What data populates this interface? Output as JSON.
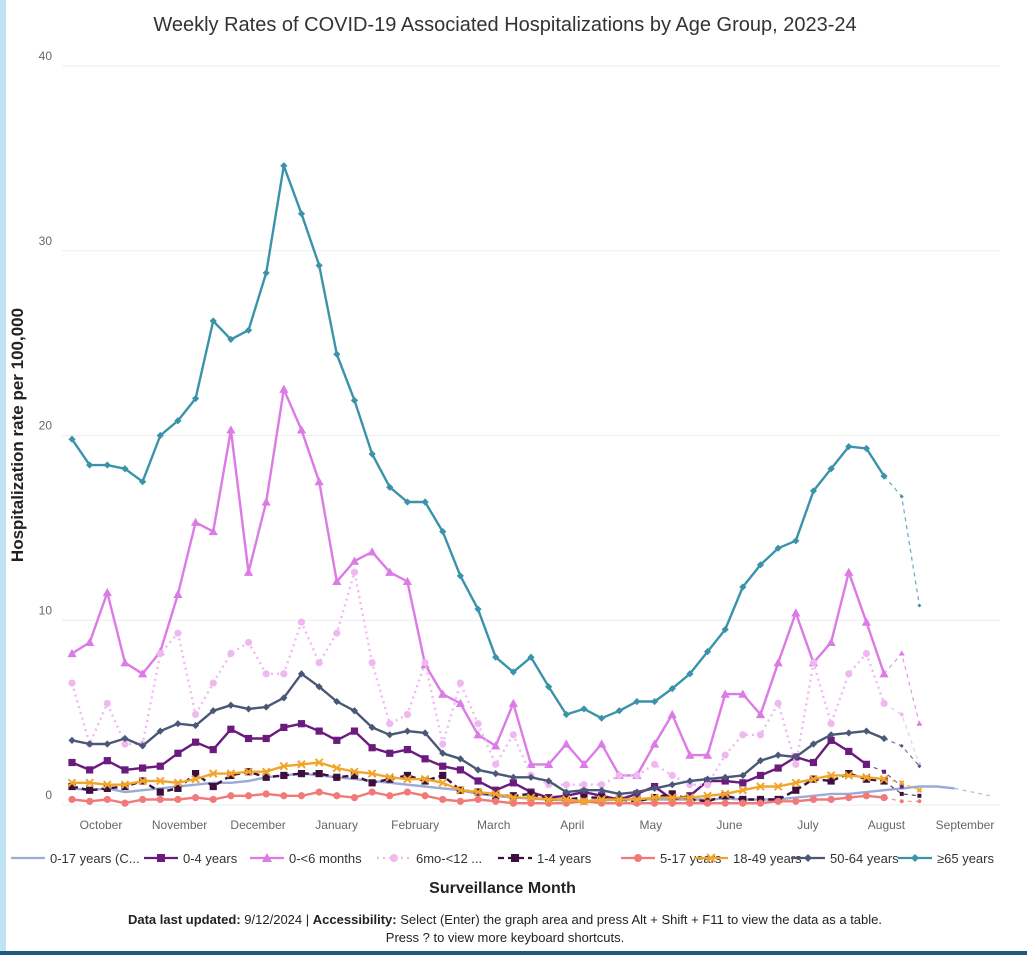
{
  "title": "Weekly Rates of COVID-19 Associated Hospitalizations by Age Group, 2023-24",
  "footer": {
    "updated_label": "Data last updated:",
    "updated_value": "9/12/2024",
    "separator": "|",
    "accessibility_label": "Accessibility:",
    "accessibility_text": "Select (Enter) the graph area and press Alt + Shift + F11 to view the data as a table.",
    "line2": "Press ? to view more keyboard shortcuts."
  },
  "chart_data": {
    "type": "line",
    "title": "Weekly Rates of COVID-19 Associated Hospitalizations by Age Group, 2023-24",
    "xlabel": "Surveillance Month",
    "ylabel": "Hospitalization rate per 100,000",
    "ylim": [
      0,
      40
    ],
    "yticks": [
      0,
      10,
      20,
      30,
      40
    ],
    "months": [
      "October",
      "November",
      "December",
      "January",
      "February",
      "March",
      "April",
      "May",
      "June",
      "July",
      "August",
      "September"
    ],
    "grid": true,
    "legend_position": "bottom",
    "series": [
      {
        "name": "0-17 years (C...",
        "color": "#9aabd6",
        "dash": "solid",
        "marker": "none",
        "values": [
          0.9,
          0.8,
          0.9,
          0.7,
          0.8,
          0.9,
          1.0,
          1.1,
          1.2,
          1.2,
          1.3,
          1.5,
          1.6,
          1.7,
          1.6,
          1.5,
          1.4,
          1.3,
          1.2,
          1.1,
          1.0,
          0.9,
          0.8,
          0.6,
          0.5,
          0.4,
          0.35,
          0.3,
          0.25,
          0.2,
          0.25,
          0.3,
          0.35,
          0.3,
          0.3,
          0.3,
          0.3,
          0.35,
          0.3,
          0.3,
          0.3,
          0.4,
          0.5,
          0.6,
          0.6,
          0.7,
          0.8,
          0.9,
          1.0,
          1.0,
          0.9,
          0.7,
          0.5
        ]
      },
      {
        "name": "0-4 years",
        "color": "#6b1a7d",
        "dash": "solid",
        "marker": "square",
        "values": [
          2.3,
          1.9,
          2.4,
          1.9,
          2.0,
          2.1,
          2.8,
          3.4,
          3.0,
          4.1,
          3.6,
          3.6,
          4.2,
          4.4,
          4.0,
          3.5,
          4.0,
          3.1,
          2.8,
          3.0,
          2.5,
          2.1,
          1.9,
          1.3,
          0.8,
          1.2,
          0.7,
          0.4,
          0.5,
          0.7,
          0.5,
          0.3,
          0.6,
          1.0,
          0.3,
          0.5,
          1.3,
          1.3,
          1.2,
          1.6,
          2.0,
          2.6,
          2.3,
          3.5,
          2.9,
          2.2,
          1.8,
          1.0
        ]
      },
      {
        "name": "0-<6 months",
        "color": "#dc7ae6",
        "dash": "solid",
        "marker": "triangle",
        "values": [
          8.2,
          8.8,
          11.5,
          7.7,
          7.1,
          8.3,
          11.4,
          15.3,
          14.8,
          20.3,
          12.6,
          16.4,
          22.5,
          20.3,
          17.5,
          12.1,
          13.2,
          13.7,
          12.6,
          12.1,
          7.6,
          6.0,
          5.5,
          3.8,
          3.2,
          5.5,
          2.2,
          2.2,
          3.3,
          2.2,
          3.3,
          1.6,
          1.6,
          3.3,
          4.9,
          2.7,
          2.7,
          6.0,
          6.0,
          4.9,
          7.7,
          10.4,
          7.7,
          8.8,
          12.6,
          9.9,
          7.1,
          8.2,
          4.4
        ]
      },
      {
        "name": "6mo-<12 ...",
        "color": "#f0b8f0",
        "dash": "dot",
        "marker": "circle",
        "values": [
          6.6,
          3.3,
          5.5,
          3.3,
          3.3,
          8.2,
          9.3,
          4.9,
          6.6,
          8.2,
          8.8,
          7.1,
          7.1,
          9.9,
          7.7,
          9.3,
          12.6,
          7.7,
          4.4,
          4.9,
          7.7,
          3.3,
          6.6,
          4.4,
          2.2,
          3.8,
          1.6,
          1.1,
          1.1,
          1.1,
          1.1,
          1.6,
          1.6,
          2.2,
          1.6,
          1.1,
          1.1,
          2.7,
          3.8,
          3.8,
          5.5,
          2.2,
          7.7,
          4.4,
          7.1,
          8.2,
          5.5,
          4.9,
          2.2
        ]
      },
      {
        "name": "1-4 years",
        "color": "#3d0f3f",
        "dash": "dash",
        "marker": "square",
        "values": [
          1.0,
          0.8,
          0.9,
          1.0,
          1.3,
          0.7,
          0.9,
          1.7,
          1.0,
          1.6,
          1.8,
          1.5,
          1.6,
          1.7,
          1.7,
          1.5,
          1.6,
          1.2,
          1.4,
          1.6,
          1.3,
          1.6,
          0.8,
          0.7,
          0.5,
          0.5,
          0.6,
          0.3,
          0.3,
          0.4,
          0.4,
          0.3,
          0.2,
          0.4,
          0.6,
          0.3,
          0.2,
          0.5,
          0.3,
          0.3,
          0.3,
          0.8,
          1.4,
          1.3,
          1.7,
          1.4,
          1.3,
          0.6,
          0.5
        ]
      },
      {
        "name": "5-17 years",
        "color": "#f07a7a",
        "dash": "solid",
        "marker": "circle",
        "values": [
          0.3,
          0.2,
          0.3,
          0.1,
          0.3,
          0.3,
          0.3,
          0.4,
          0.3,
          0.5,
          0.5,
          0.6,
          0.5,
          0.5,
          0.7,
          0.5,
          0.4,
          0.7,
          0.5,
          0.7,
          0.5,
          0.3,
          0.2,
          0.3,
          0.2,
          0.1,
          0.1,
          0.1,
          0.1,
          0.2,
          0.1,
          0.1,
          0.1,
          0.1,
          0.1,
          0.1,
          0.1,
          0.1,
          0.1,
          0.1,
          0.2,
          0.2,
          0.3,
          0.3,
          0.4,
          0.5,
          0.4,
          0.2,
          0.2
        ]
      },
      {
        "name": "18-49 years",
        "color": "#f0a62c",
        "dash": "solid",
        "marker": "x",
        "values": [
          1.2,
          1.2,
          1.1,
          1.1,
          1.3,
          1.3,
          1.2,
          1.4,
          1.7,
          1.7,
          1.8,
          1.8,
          2.1,
          2.2,
          2.3,
          2.0,
          1.8,
          1.7,
          1.5,
          1.4,
          1.4,
          1.2,
          0.8,
          0.7,
          0.6,
          0.4,
          0.4,
          0.3,
          0.3,
          0.2,
          0.3,
          0.3,
          0.3,
          0.4,
          0.4,
          0.4,
          0.5,
          0.6,
          0.8,
          1.0,
          1.0,
          1.2,
          1.4,
          1.6,
          1.6,
          1.5,
          1.4,
          1.2,
          0.8
        ]
      },
      {
        "name": "50-64 years",
        "color": "#4a5877",
        "dash": "solid",
        "marker": "diamond",
        "values": [
          3.5,
          3.3,
          3.3,
          3.6,
          3.2,
          4.0,
          4.4,
          4.3,
          5.1,
          5.4,
          5.2,
          5.3,
          5.8,
          7.1,
          6.4,
          5.6,
          5.1,
          4.2,
          3.8,
          4.0,
          3.9,
          2.8,
          2.5,
          1.9,
          1.7,
          1.5,
          1.5,
          1.3,
          0.7,
          0.8,
          0.8,
          0.6,
          0.7,
          0.9,
          1.1,
          1.3,
          1.4,
          1.5,
          1.6,
          2.4,
          2.7,
          2.6,
          3.3,
          3.8,
          3.9,
          4.0,
          3.6,
          3.2,
          2.1
        ]
      },
      {
        "name": "≥65 years",
        "color": "#3b93aa",
        "dash": "solid",
        "marker": "diamond",
        "values": [
          19.8,
          18.4,
          18.4,
          18.2,
          17.5,
          20.0,
          20.8,
          22.0,
          26.2,
          25.2,
          25.7,
          28.8,
          34.6,
          32.0,
          29.2,
          24.4,
          21.9,
          19.0,
          17.2,
          16.4,
          16.4,
          14.8,
          12.4,
          10.6,
          8.0,
          7.2,
          8.0,
          6.4,
          4.9,
          5.2,
          4.7,
          5.1,
          5.6,
          5.6,
          6.3,
          7.1,
          8.3,
          9.5,
          11.8,
          13.0,
          13.9,
          14.3,
          17.0,
          18.2,
          19.4,
          19.3,
          17.8,
          16.7,
          10.8
        ]
      }
    ]
  }
}
